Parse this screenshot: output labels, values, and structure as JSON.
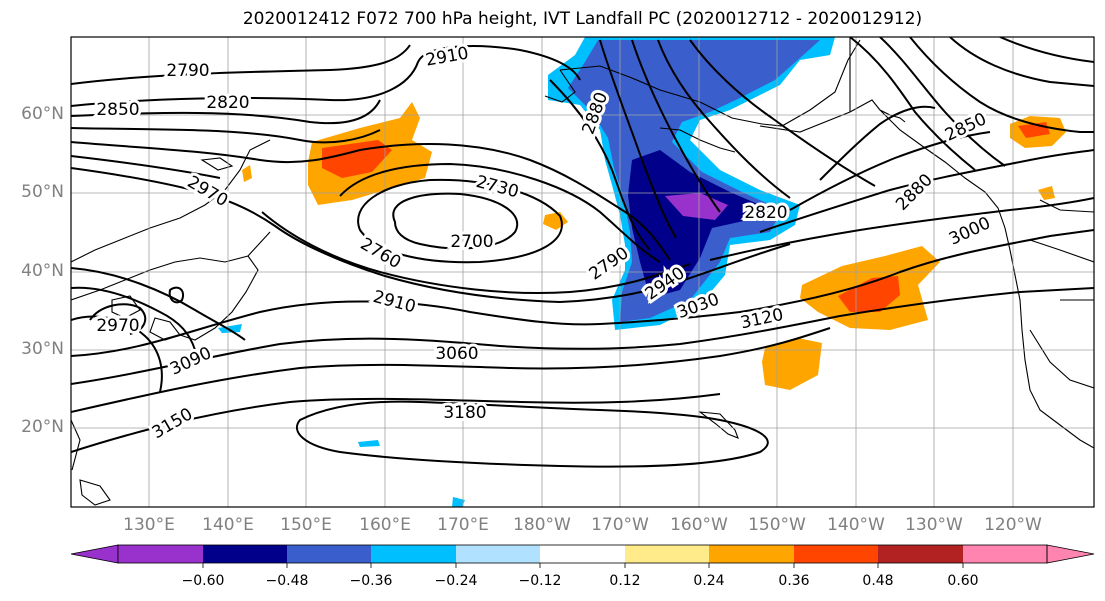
{
  "title": "2020012412 F072 700 hPa height, IVT Landfall PC (2020012712 - 2020012912)",
  "lat_labels": [
    "60°N",
    "50°N",
    "40°N",
    "30°N",
    "20°N"
  ],
  "lon_labels": [
    "130°E",
    "140°E",
    "150°E",
    "160°E",
    "170°E",
    "180°W",
    "170°W",
    "160°W",
    "150°W",
    "140°W",
    "130°W",
    "120°W"
  ],
  "contour_labels": [
    "2790",
    "2820",
    "2850",
    "2910",
    "2880",
    "2970",
    "2730",
    "2700",
    "2760",
    "2790",
    "2910",
    "2940",
    "2820",
    "3030",
    "3000",
    "2850",
    "2880",
    "3060",
    "3090",
    "3120",
    "3180",
    "3150",
    "2970"
  ],
  "colorbar": {
    "labels": [
      "−0.60",
      "−0.48",
      "−0.36",
      "−0.24",
      "−0.12",
      "0.12",
      "0.24",
      "0.36",
      "0.48",
      "0.60"
    ],
    "colors": [
      "#9932cc",
      "#00008b",
      "#3a5fcd",
      "#00bfff",
      "#b0e2ff",
      "#ffffff",
      "#ffeb8a",
      "#ffa500",
      "#ff4500",
      "#b22222",
      "#ff85b0"
    ]
  }
}
